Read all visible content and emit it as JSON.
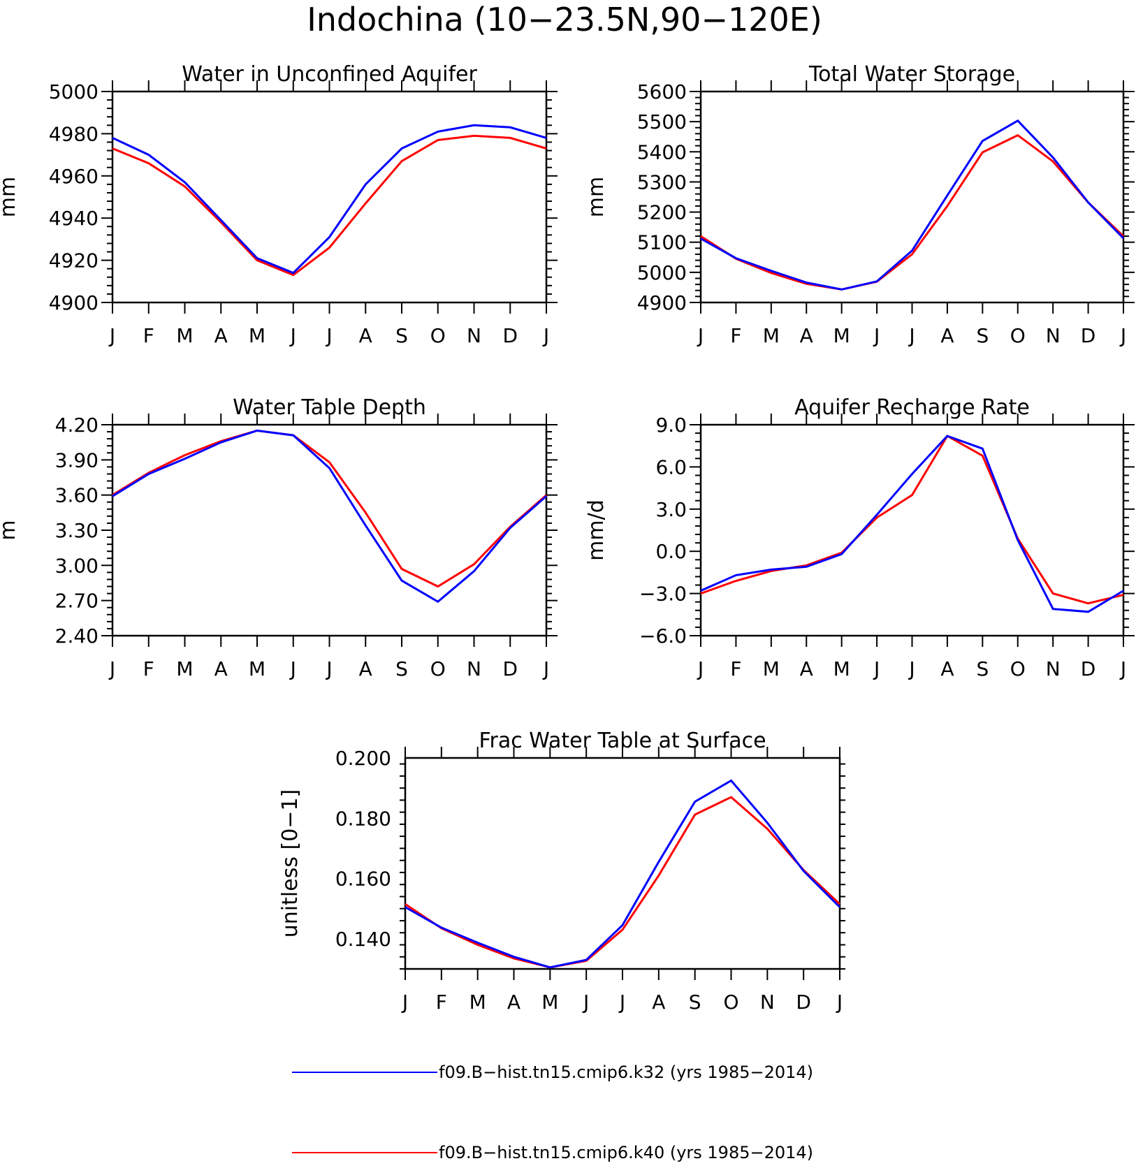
{
  "figure": {
    "title": "Indochina (10−23.5N,90−120E)"
  },
  "legend": {
    "placement": "bottom-center",
    "entries": [
      {
        "label": "f09.B−hist.tn15.cmip6.k32 (yrs 1985−2014)",
        "color": "#0000ff"
      },
      {
        "label": "f09.B−hist.tn15.cmip6.k40 (yrs 1985−2014)",
        "color": "#ff0000"
      }
    ]
  },
  "chart_data": [
    {
      "type": "line",
      "title": "Water in Unconfined Aquifer",
      "ylabel": "mm",
      "xlabel": "",
      "grid": false,
      "categories": [
        "J",
        "F",
        "M",
        "A",
        "M",
        "J",
        "J",
        "A",
        "S",
        "O",
        "N",
        "D",
        "J"
      ],
      "ylim": [
        4900,
        5000
      ],
      "yticks": [
        4900,
        4920,
        4940,
        4960,
        4980,
        5000
      ],
      "ytick_labels": [
        "4900",
        "4920",
        "4940",
        "4960",
        "4980",
        "5000"
      ],
      "series": [
        {
          "name": "f09.B−hist.tn15.cmip6.k32 (yrs 1985−2014)",
          "color": "#0000ff",
          "values": [
            4978,
            4970,
            4957,
            4939,
            4921,
            4914,
            4931,
            4956,
            4973,
            4981,
            4984,
            4983,
            4978
          ]
        },
        {
          "name": "f09.B−hist.tn15.cmip6.k40 (yrs 1985−2014)",
          "color": "#ff0000",
          "values": [
            4973,
            4966,
            4955,
            4938,
            4920,
            4913,
            4926,
            4947,
            4967,
            4977,
            4979,
            4978,
            4973
          ]
        }
      ]
    },
    {
      "type": "line",
      "title": "Total Water Storage",
      "ylabel": "mm",
      "xlabel": "",
      "grid": false,
      "categories": [
        "J",
        "F",
        "M",
        "A",
        "M",
        "J",
        "J",
        "A",
        "S",
        "O",
        "N",
        "D",
        "J"
      ],
      "ylim": [
        4900,
        5600
      ],
      "yticks": [
        4900,
        5000,
        5100,
        5200,
        5300,
        5400,
        5500,
        5600
      ],
      "ytick_labels": [
        "4900",
        "5000",
        "5100",
        "5200",
        "5300",
        "5400",
        "5500",
        "5600"
      ],
      "series": [
        {
          "name": "f09.B−hist.tn15.cmip6.k32 (yrs 1985−2014)",
          "color": "#0000ff",
          "values": [
            5112,
            5047,
            5005,
            4966,
            4943,
            4970,
            5072,
            5255,
            5436,
            5503,
            5381,
            5232,
            5113
          ]
        },
        {
          "name": "f09.B−hist.tn15.cmip6.k40 (yrs 1985−2014)",
          "color": "#ff0000",
          "values": [
            5120,
            5045,
            4998,
            4962,
            4943,
            4969,
            5060,
            5220,
            5398,
            5455,
            5368,
            5232,
            5120
          ]
        }
      ]
    },
    {
      "type": "line",
      "title": "Water Table Depth",
      "ylabel": "m",
      "xlabel": "",
      "grid": false,
      "categories": [
        "J",
        "F",
        "M",
        "A",
        "M",
        "J",
        "J",
        "A",
        "S",
        "O",
        "N",
        "D",
        "J"
      ],
      "ylim": [
        2.4,
        4.2
      ],
      "yticks": [
        2.4,
        2.7,
        3.0,
        3.3,
        3.6,
        3.9,
        4.2
      ],
      "ytick_labels": [
        "2.40",
        "2.70",
        "3.00",
        "3.30",
        "3.60",
        "3.90",
        "4.20"
      ],
      "series": [
        {
          "name": "f09.B−hist.tn15.cmip6.k32 (yrs 1985−2014)",
          "color": "#0000ff",
          "values": [
            3.59,
            3.78,
            3.91,
            4.05,
            4.15,
            4.11,
            3.83,
            3.34,
            2.87,
            2.69,
            2.95,
            3.32,
            3.59
          ]
        },
        {
          "name": "f09.B−hist.tn15.cmip6.k40 (yrs 1985−2014)",
          "color": "#ff0000",
          "values": [
            3.6,
            3.79,
            3.94,
            4.06,
            4.15,
            4.11,
            3.88,
            3.45,
            2.97,
            2.82,
            3.01,
            3.33,
            3.6
          ]
        }
      ]
    },
    {
      "type": "line",
      "title": "Aquifer Recharge Rate",
      "ylabel": "mm/d",
      "xlabel": "",
      "grid": false,
      "categories": [
        "J",
        "F",
        "M",
        "A",
        "M",
        "J",
        "J",
        "A",
        "S",
        "O",
        "N",
        "D",
        "J"
      ],
      "ylim": [
        -6.0,
        9.0
      ],
      "yticks": [
        -6.0,
        -3.0,
        0.0,
        3.0,
        6.0,
        9.0
      ],
      "ytick_labels": [
        "−6.0",
        "−3.0",
        "0.0",
        "3.0",
        "6.0",
        "9.0"
      ],
      "series": [
        {
          "name": "f09.B−hist.tn15.cmip6.k32 (yrs 1985−2014)",
          "color": "#0000ff",
          "values": [
            -2.8,
            -1.7,
            -1.3,
            -1.1,
            -0.2,
            2.6,
            5.5,
            8.2,
            7.3,
            0.8,
            -4.1,
            -4.3,
            -2.8
          ]
        },
        {
          "name": "f09.B−hist.tn15.cmip6.k40 (yrs 1985−2014)",
          "color": "#ff0000",
          "values": [
            -3.0,
            -2.1,
            -1.4,
            -1.0,
            -0.1,
            2.4,
            4.0,
            8.2,
            6.8,
            0.9,
            -3.0,
            -3.7,
            -3.1
          ]
        }
      ]
    },
    {
      "type": "line",
      "title": "Frac Water Table at Surface",
      "ylabel": "unitless [0−1]",
      "xlabel": "",
      "grid": false,
      "categories": [
        "J",
        "F",
        "M",
        "A",
        "M",
        "J",
        "J",
        "A",
        "S",
        "O",
        "N",
        "D",
        "J"
      ],
      "ylim": [
        0.13,
        0.2
      ],
      "yticks": [
        0.14,
        0.16,
        0.18,
        0.2
      ],
      "ytick_labels": [
        "0.140",
        "0.160",
        "0.180",
        "0.200"
      ],
      "series": [
        {
          "name": "f09.B−hist.tn15.cmip6.k32 (yrs 1985−2014)",
          "color": "#0000ff",
          "values": [
            0.1505,
            0.1437,
            0.1387,
            0.134,
            0.1305,
            0.133,
            0.1445,
            0.1655,
            0.1855,
            0.1925,
            0.1785,
            0.1625,
            0.1505
          ]
        },
        {
          "name": "f09.B−hist.tn15.cmip6.k40 (yrs 1985−2014)",
          "color": "#ff0000",
          "values": [
            0.1515,
            0.1435,
            0.138,
            0.1335,
            0.1305,
            0.1327,
            0.143,
            0.161,
            0.1812,
            0.187,
            0.1765,
            0.1628,
            0.1515
          ]
        }
      ]
    }
  ]
}
